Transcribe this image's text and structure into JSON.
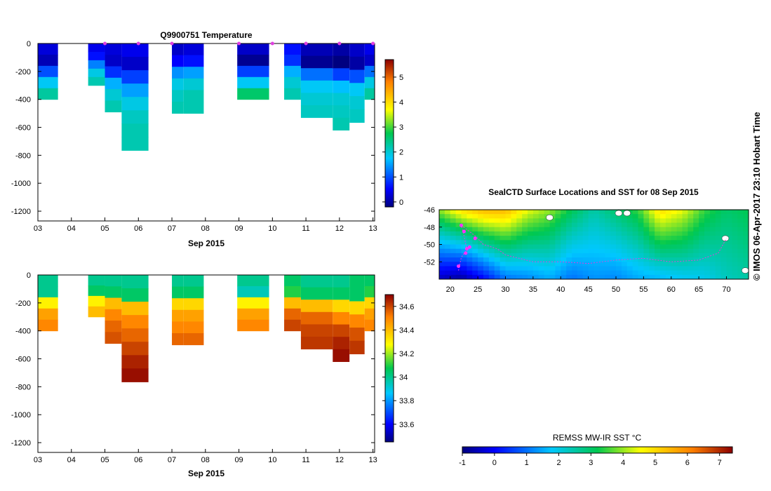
{
  "credit": "© IMOS 06-Apr-2017 23:10 Hobart Time",
  "chart_data": [
    {
      "id": "temperature",
      "type": "heatmap",
      "title": "Q9900751  Temperature",
      "xlabel": "Sep 2015",
      "ylabel": "",
      "xlim": [
        3.0,
        13.05
      ],
      "ylim": [
        -1270,
        0
      ],
      "x_ticks": [
        3,
        4,
        5,
        6,
        7,
        8,
        9,
        10,
        11,
        12,
        13
      ],
      "x_tick_labels": [
        "03",
        "04",
        "05",
        "06",
        "07",
        "08",
        "09",
        "10",
        "11",
        "12",
        "13"
      ],
      "y_ticks": [
        0,
        -200,
        -400,
        -600,
        -800,
        -1000,
        -1200
      ],
      "y_tick_labels": [
        "0",
        "-200",
        "-400",
        "-600",
        "-800",
        "-1000",
        "-1200"
      ],
      "colorbar": {
        "min": -0.2,
        "max": 5.7,
        "ticks": [
          0,
          1,
          2,
          3,
          4,
          5
        ],
        "tick_labels": [
          "0",
          "1",
          "2",
          "3",
          "4",
          "5"
        ]
      },
      "surface_markers": [
        5.0,
        6.0,
        7.0,
        9.0,
        10.0,
        11.0,
        12.0,
        13.0
      ],
      "profiles": [
        {
          "x0": 3.0,
          "x1": 3.6,
          "bottom": -400,
          "values": [
            0.3,
            0.1,
            1.0,
            1.8,
            2.3
          ]
        },
        {
          "x0": 4.5,
          "x1": 5.0,
          "bottom": -300,
          "values": [
            0.4,
            0.6,
            1.3,
            1.9,
            2.2
          ]
        },
        {
          "x0": 5.0,
          "x1": 5.5,
          "bottom": -490,
          "values": [
            0.3,
            0.2,
            0.8,
            1.6,
            2.0,
            2.2
          ]
        },
        {
          "x0": 5.5,
          "x1": 6.3,
          "bottom": -765,
          "values": [
            0.4,
            0.2,
            0.9,
            1.5,
            1.9,
            2.1,
            2.2,
            2.2
          ]
        },
        {
          "x0": 7.0,
          "x1": 7.35,
          "bottom": -500,
          "values": [
            0.2,
            0.5,
            1.4,
            1.9,
            2.1,
            2.2
          ]
        },
        {
          "x0": 7.35,
          "x1": 7.95,
          "bottom": -500,
          "values": [
            0.3,
            0.6,
            1.5,
            2.0,
            2.2,
            2.2
          ]
        },
        {
          "x0": 8.95,
          "x1": 9.9,
          "bottom": -400,
          "values": [
            0.2,
            -0.1,
            0.9,
            1.8,
            2.6
          ]
        },
        {
          "x0": 10.35,
          "x1": 10.85,
          "bottom": -400,
          "values": [
            0.6,
            0.8,
            1.6,
            2.0,
            2.2
          ]
        },
        {
          "x0": 10.85,
          "x1": 11.8,
          "bottom": -530,
          "values": [
            0.1,
            -0.1,
            1.2,
            1.8,
            2.0,
            2.1
          ]
        },
        {
          "x0": 11.8,
          "x1": 12.3,
          "bottom": -620,
          "values": [
            0.0,
            -0.2,
            0.9,
            1.7,
            2.0,
            2.1,
            2.2
          ]
        },
        {
          "x0": 12.3,
          "x1": 12.75,
          "bottom": -565,
          "values": [
            0.2,
            0.0,
            1.0,
            1.8,
            2.0,
            2.1
          ]
        },
        {
          "x0": 12.75,
          "x1": 13.05,
          "bottom": -400,
          "values": [
            0.4,
            0.2,
            1.2,
            1.9,
            2.3
          ]
        }
      ]
    },
    {
      "id": "salinity",
      "type": "heatmap",
      "title": "",
      "xlabel": "Sep 2015",
      "ylabel": "",
      "xlim": [
        3.0,
        13.05
      ],
      "ylim": [
        -1270,
        0
      ],
      "x_ticks": [
        3,
        4,
        5,
        6,
        7,
        8,
        9,
        10,
        11,
        12,
        13
      ],
      "x_tick_labels": [
        "03",
        "04",
        "05",
        "06",
        "07",
        "08",
        "09",
        "10",
        "11",
        "12",
        "13"
      ],
      "y_ticks": [
        0,
        -200,
        -400,
        -600,
        -800,
        -1000,
        -1200
      ],
      "y_tick_labels": [
        "0",
        "-200",
        "-400",
        "-600",
        "-800",
        "-1000",
        "-1200"
      ],
      "colorbar": {
        "min": 33.45,
        "max": 34.7,
        "ticks": [
          33.6,
          33.8,
          34,
          34.2,
          34.4,
          34.6
        ],
        "tick_labels": [
          "33.6",
          "33.8",
          "34",
          "34.2",
          "34.4",
          "34.6"
        ]
      },
      "profiles": [
        {
          "x0": 3.0,
          "x1": 3.6,
          "bottom": -400,
          "values": [
            34.0,
            34.0,
            34.3,
            34.45,
            34.5
          ]
        },
        {
          "x0": 4.5,
          "x1": 5.0,
          "bottom": -300,
          "values": [
            34.0,
            34.05,
            34.3,
            34.4
          ]
        },
        {
          "x0": 5.0,
          "x1": 5.5,
          "bottom": -490,
          "values": [
            34.0,
            34.05,
            34.4,
            34.5,
            34.55,
            34.58
          ]
        },
        {
          "x0": 5.5,
          "x1": 6.3,
          "bottom": -765,
          "values": [
            34.0,
            34.05,
            34.4,
            34.5,
            34.55,
            34.6,
            34.65,
            34.68
          ]
        },
        {
          "x0": 7.0,
          "x1": 7.35,
          "bottom": -500,
          "values": [
            34.0,
            34.05,
            34.35,
            34.45,
            34.5,
            34.55
          ]
        },
        {
          "x0": 7.35,
          "x1": 7.95,
          "bottom": -500,
          "values": [
            34.0,
            34.05,
            34.35,
            34.45,
            34.5,
            34.55
          ]
        },
        {
          "x0": 8.95,
          "x1": 9.9,
          "bottom": -400,
          "values": [
            34.0,
            33.95,
            34.3,
            34.45,
            34.5
          ]
        },
        {
          "x0": 10.35,
          "x1": 10.85,
          "bottom": -400,
          "values": [
            34.05,
            34.1,
            34.4,
            34.55,
            34.6
          ]
        },
        {
          "x0": 10.85,
          "x1": 11.8,
          "bottom": -530,
          "values": [
            34.0,
            34.05,
            34.4,
            34.55,
            34.6,
            34.62
          ]
        },
        {
          "x0": 11.8,
          "x1": 12.3,
          "bottom": -620,
          "values": [
            34.0,
            34.05,
            34.35,
            34.5,
            34.6,
            34.65,
            34.68
          ]
        },
        {
          "x0": 12.3,
          "x1": 12.75,
          "bottom": -565,
          "values": [
            34.05,
            34.05,
            34.35,
            34.5,
            34.58,
            34.62
          ]
        },
        {
          "x0": 12.75,
          "x1": 13.05,
          "bottom": -400,
          "values": [
            34.05,
            34.1,
            34.35,
            34.45,
            34.5
          ]
        }
      ]
    },
    {
      "id": "sst-map",
      "type": "heatmap",
      "title": "SealCTD Surface Locations and SST for 08 Sep 2015",
      "xlabel": "",
      "ylabel": "",
      "xlim": [
        18,
        74
      ],
      "ylim": [
        -54,
        -46
      ],
      "x_ticks": [
        20,
        25,
        30,
        35,
        40,
        45,
        50,
        55,
        60,
        65,
        70
      ],
      "x_tick_labels": [
        "20",
        "25",
        "30",
        "35",
        "40",
        "45",
        "50",
        "55",
        "60",
        "65",
        "70"
      ],
      "y_ticks": [
        -46,
        -48,
        -50,
        -52
      ],
      "y_tick_labels": [
        "-46",
        "-48",
        "-50",
        "-52"
      ],
      "colorbar": {
        "label": "REMSS MW-IR SST °C",
        "min": -1,
        "max": 7.4,
        "ticks": [
          -1,
          0,
          1,
          2,
          3,
          4,
          5,
          6,
          7
        ],
        "tick_labels": [
          "-1",
          "0",
          "1",
          "2",
          "3",
          "4",
          "5",
          "6",
          "7"
        ]
      },
      "sst_field_by_longitude": [
        {
          "lon": 18,
          "north": 4.0,
          "south": -0.5
        },
        {
          "lon": 22,
          "north": 5.0,
          "south": -0.8
        },
        {
          "lon": 26,
          "north": 5.5,
          "south": 0.0
        },
        {
          "lon": 30,
          "north": 5.5,
          "south": 1.0
        },
        {
          "lon": 34,
          "north": 4.5,
          "south": 1.2
        },
        {
          "lon": 38,
          "north": 4.0,
          "south": 1.5
        },
        {
          "lon": 42,
          "north": 3.2,
          "south": 1.0
        },
        {
          "lon": 46,
          "north": 2.5,
          "south": 1.3
        },
        {
          "lon": 50,
          "north": 3.0,
          "south": 1.2
        },
        {
          "lon": 54,
          "north": 3.5,
          "south": 1.5
        },
        {
          "lon": 58,
          "north": 5.0,
          "south": 1.6
        },
        {
          "lon": 62,
          "north": 4.5,
          "south": 1.8
        },
        {
          "lon": 66,
          "north": 3.5,
          "south": 1.9
        },
        {
          "lon": 70,
          "north": 3.0,
          "south": 2.3
        },
        {
          "lon": 74,
          "north": 3.2,
          "south": 2.5
        }
      ],
      "track": [
        {
          "lon": 21.5,
          "lat": -53.0
        },
        {
          "lon": 22.0,
          "lat": -51.5
        },
        {
          "lon": 23.0,
          "lat": -50.6
        },
        {
          "lon": 22.5,
          "lat": -49.0
        },
        {
          "lon": 22.0,
          "lat": -47.8
        },
        {
          "lon": 24.5,
          "lat": -49.0
        },
        {
          "lon": 26.0,
          "lat": -50.0
        },
        {
          "lon": 28.5,
          "lat": -50.5
        },
        {
          "lon": 30.0,
          "lat": -51.2
        },
        {
          "lon": 35.0,
          "lat": -52.0
        },
        {
          "lon": 40.0,
          "lat": -52.0
        },
        {
          "lon": 45.0,
          "lat": -52.2
        },
        {
          "lon": 50.0,
          "lat": -51.8
        },
        {
          "lon": 55.0,
          "lat": -51.6
        },
        {
          "lon": 60.0,
          "lat": -52.0
        },
        {
          "lon": 65.0,
          "lat": -51.8
        },
        {
          "lon": 68.5,
          "lat": -51.0
        },
        {
          "lon": 70.0,
          "lat": -49.3
        }
      ],
      "surface_locations": [
        {
          "lon": 22.0,
          "lat": -47.8
        },
        {
          "lon": 22.5,
          "lat": -48.5
        },
        {
          "lon": 23.0,
          "lat": -50.5
        },
        {
          "lon": 23.5,
          "lat": -50.3
        },
        {
          "lon": 24.5,
          "lat": -49.3
        },
        {
          "lon": 22.8,
          "lat": -51.0
        },
        {
          "lon": 21.5,
          "lat": -52.5
        }
      ],
      "land_patches": [
        {
          "lon": 38.0,
          "lat": -46.9
        },
        {
          "lon": 50.5,
          "lat": -46.4
        },
        {
          "lon": 52.0,
          "lat": -46.4
        },
        {
          "lon": 69.8,
          "lat": -49.3
        },
        {
          "lon": 73.4,
          "lat": -53.0
        }
      ]
    }
  ]
}
